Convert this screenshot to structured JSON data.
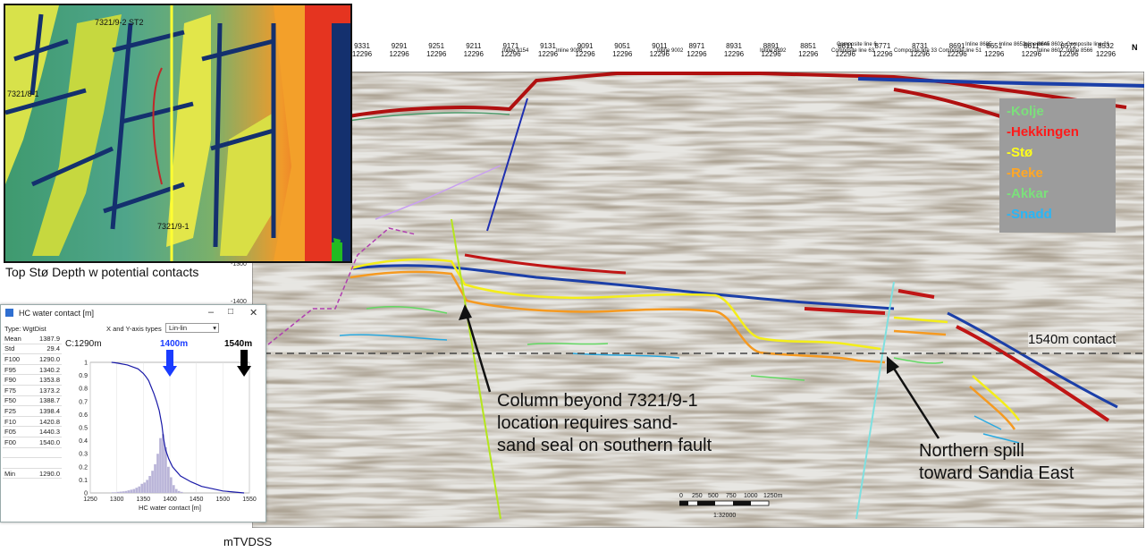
{
  "map": {
    "caption": "Top Stø Depth w potential contacts",
    "well_labels": [
      "7321/9-2 ST2",
      "7321/8-1",
      "7321/9-1"
    ]
  },
  "seismic": {
    "trace_top": [
      "9331",
      "9291",
      "9251",
      "9211",
      "9171",
      "9131",
      "9091",
      "9051",
      "9011",
      "8971",
      "8931",
      "8891",
      "8851",
      "8811",
      "8771",
      "8731",
      "8691",
      "8651",
      "8611",
      "8572",
      "8532"
    ],
    "trace_bottom": [
      "12296",
      "12296",
      "12296",
      "12296",
      "12296",
      "12296",
      "12296",
      "12296",
      "12296",
      "12296",
      "12296",
      "12296",
      "12296",
      "12296",
      "12296",
      "12296",
      "12296",
      "12296",
      "12296",
      "12296",
      "12296"
    ],
    "inline_labels": [
      "Inline 9154",
      "Inline 9098",
      "Inline 9002",
      "Inline 8892",
      "Composite line 6",
      "Composite line 63",
      "Composite line 33",
      "Composite line 51",
      "Inline 8685",
      "Inline 8652",
      "Inline 8645",
      "Inline 8602",
      "Inline 8602",
      "Composite line 21",
      "Inline 8566"
    ],
    "north_label": "N",
    "depth_ticks": [
      "-1300",
      "-1400"
    ],
    "depth_unit": "mTVDSS",
    "contact_label": "1540m contact",
    "scale": {
      "ticks": [
        "0",
        "250",
        "500",
        "750",
        "1000",
        "1250m"
      ],
      "ratio": "1:32000"
    }
  },
  "legend": [
    {
      "label": "-Kolje",
      "color": "#7be07b"
    },
    {
      "label": "-Hekkingen",
      "color": "#ff1a1a"
    },
    {
      "label": "-Stø",
      "color": "#ffff1a"
    },
    {
      "label": "-Reke",
      "color": "#ffa726"
    },
    {
      "label": "-Akkar",
      "color": "#7be07b"
    },
    {
      "label": "-Snadd",
      "color": "#29b6f6"
    }
  ],
  "annotations": {
    "south_lines": [
      "Column beyond 7321/9-1",
      "location requires sand-",
      "sand seal on southern fault"
    ],
    "north_lines": [
      "Northern spill",
      "toward Sandia East"
    ]
  },
  "hc_window": {
    "title": "HC water contact [m]",
    "type_label": "Type: WgtDist",
    "axis_type_label": "X and Y-axis types",
    "axis_type_value": "Lin-lin",
    "stats": [
      {
        "k": "Mean",
        "v": "1387.9"
      },
      {
        "k": "Std",
        "v": "29.4"
      },
      {
        "k": "F100",
        "v": "1290.0"
      },
      {
        "k": "F95",
        "v": "1340.2"
      },
      {
        "k": "F90",
        "v": "1353.8"
      },
      {
        "k": "F75",
        "v": "1373.2"
      },
      {
        "k": "F50",
        "v": "1388.7"
      },
      {
        "k": "F25",
        "v": "1398.4"
      },
      {
        "k": "F10",
        "v": "1420.8"
      },
      {
        "k": "F05",
        "v": "1440.3"
      },
      {
        "k": "F00",
        "v": "1540.0"
      },
      {
        "k": "",
        "v": ""
      },
      {
        "k": "",
        "v": ""
      },
      {
        "k": "Min",
        "v": "1290.0"
      }
    ],
    "markers": {
      "c_label": "C:1290m",
      "blue_label": "1400m",
      "black_label": "1540m"
    },
    "marker_colors": {
      "blue": "#1a3cff",
      "black": "#000000"
    }
  },
  "chart_data": {
    "type": "bar",
    "title": "",
    "xlabel": "HC water contact [m]",
    "ylabel": "",
    "xlim": [
      1250,
      1550
    ],
    "ylim": [
      0,
      1
    ],
    "x_ticks": [
      "1250",
      "1300",
      "1350",
      "1400",
      "1450",
      "1500",
      "1550"
    ],
    "y_ticks": [
      "0",
      "0.1",
      "0.2",
      "0.3",
      "0.4",
      "0.5",
      "0.6",
      "0.7",
      "0.8",
      "0.9",
      "1"
    ],
    "histogram": {
      "bin_width": 5,
      "x": [
        1290,
        1295,
        1300,
        1305,
        1310,
        1315,
        1320,
        1325,
        1330,
        1335,
        1340,
        1345,
        1350,
        1355,
        1360,
        1365,
        1370,
        1375,
        1380,
        1385,
        1390,
        1395,
        1400,
        1405,
        1410,
        1415,
        1420
      ],
      "values": [
        0.005,
        0.005,
        0.008,
        0.01,
        0.012,
        0.015,
        0.02,
        0.025,
        0.03,
        0.04,
        0.05,
        0.07,
        0.08,
        0.1,
        0.13,
        0.17,
        0.22,
        0.3,
        0.42,
        0.45,
        0.35,
        0.2,
        0.12,
        0.06,
        0.03,
        0.015,
        0.008
      ]
    },
    "series": [
      {
        "type": "line",
        "x": [
          1290,
          1300,
          1320,
          1340,
          1350,
          1355,
          1360,
          1365,
          1370,
          1375,
          1380,
          1385,
          1388,
          1392,
          1398,
          1405,
          1420,
          1440,
          1460,
          1500,
          1540
        ],
        "values": [
          1.0,
          0.995,
          0.98,
          0.95,
          0.915,
          0.89,
          0.86,
          0.81,
          0.76,
          0.7,
          0.63,
          0.52,
          0.42,
          0.33,
          0.26,
          0.2,
          0.13,
          0.085,
          0.05,
          0.015,
          0.0
        ]
      }
    ]
  }
}
